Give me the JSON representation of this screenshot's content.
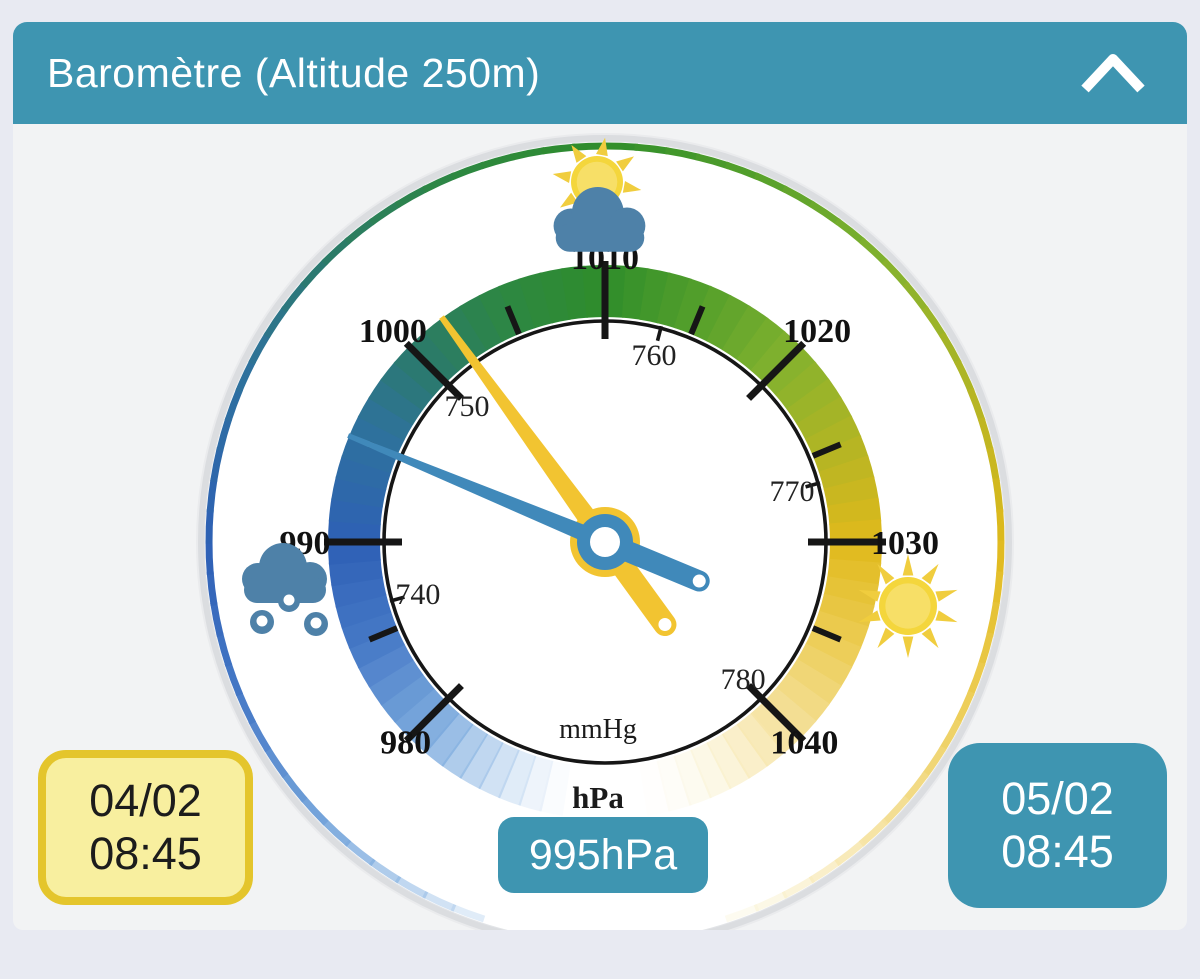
{
  "header": {
    "title": "Baromètre (Altitude 250m)"
  },
  "gauge": {
    "unit_primary": "hPa",
    "unit_secondary": "mmHg",
    "top_value_hpa": 1010,
    "deg_per_hpa": 4.5,
    "mmhg_to_hpa_factor": 1.3332237,
    "hpa_labels": [
      980,
      990,
      1000,
      1010,
      1020,
      1030,
      1040
    ],
    "hpa_minor_ticks": [
      985,
      995,
      1005,
      1015,
      1025,
      1035
    ],
    "mmhg_labels": [
      740,
      750,
      760,
      770,
      780
    ],
    "band_stops": [
      {
        "p": 972,
        "c": "#aecdf0",
        "a": 0
      },
      {
        "p": 980,
        "c": "#79a8dc",
        "a": 1
      },
      {
        "p": 985,
        "c": "#4578c6",
        "a": 1
      },
      {
        "p": 990,
        "c": "#2e60b5",
        "a": 1
      },
      {
        "p": 996,
        "c": "#2e729b",
        "a": 1
      },
      {
        "p": 1000,
        "c": "#2b7a6b",
        "a": 1
      },
      {
        "p": 1005,
        "c": "#2d8742",
        "a": 1
      },
      {
        "p": 1010,
        "c": "#2f8d2b",
        "a": 1
      },
      {
        "p": 1015,
        "c": "#55a02b",
        "a": 1
      },
      {
        "p": 1020,
        "c": "#83b22e",
        "a": 1
      },
      {
        "p": 1025,
        "c": "#b2b524",
        "a": 1
      },
      {
        "p": 1030,
        "c": "#e0b91c",
        "a": 1
      },
      {
        "p": 1035,
        "c": "#eccc52",
        "a": 1
      },
      {
        "p": 1040,
        "c": "#f4e09a",
        "a": 1
      },
      {
        "p": 1048,
        "c": "#fdf8e8",
        "a": 0
      }
    ],
    "needles": [
      {
        "id": "previous-day-needle",
        "color": "#f2c431",
        "value_hpa": 1002
      },
      {
        "id": "current-needle",
        "color": "#4089ba",
        "value_hpa": 995
      }
    ]
  },
  "readings": {
    "previous": {
      "date": "04/02",
      "time": "08:45"
    },
    "current": {
      "date": "05/02",
      "time": "08:45"
    },
    "current_pressure": "995hPa"
  },
  "colors": {
    "teal": "#3e95b1",
    "tick": "#161616",
    "needle_yellow": "#f2c431",
    "needle_blue": "#4089ba",
    "cloud": "#4e81a8",
    "sun_disc": "#f4d63c",
    "sun_rays": "#f0cd3e",
    "sun_inner": "#f9e88a",
    "yellow_box_bg": "#f8ef9f",
    "yellow_box_border": "#e4c52c"
  }
}
